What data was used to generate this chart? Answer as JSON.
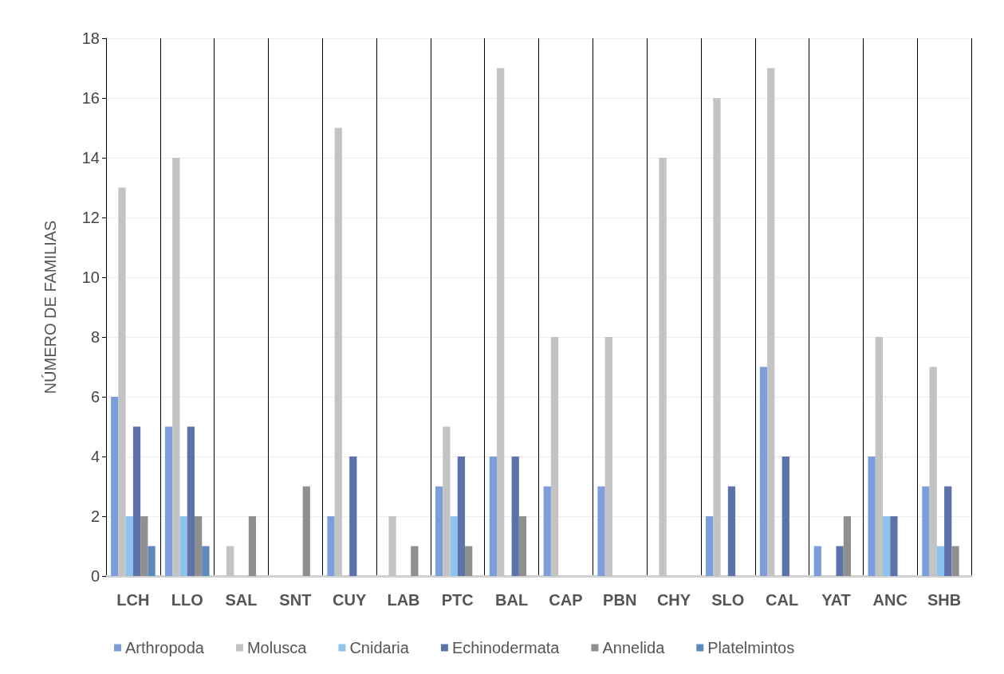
{
  "chart_data": {
    "type": "bar",
    "ylabel": "NÚMERO DE FAMILIAS",
    "categories": [
      "LCH",
      "LLO",
      "SAL",
      "SNT",
      "CUY",
      "LAB",
      "PTC",
      "BAL",
      "CAP",
      "PBN",
      "CHY",
      "SLO",
      "CAL",
      "YAT",
      "ANC",
      "SHB"
    ],
    "series": [
      {
        "name": "Arthropoda",
        "color": "#7c9fdc",
        "values": [
          6,
          5,
          0,
          0,
          2,
          0,
          3,
          4,
          3,
          3,
          0,
          2,
          7,
          1,
          4,
          3
        ]
      },
      {
        "name": "Molusca",
        "color": "#c3c3c3",
        "values": [
          13,
          14,
          1,
          0,
          15,
          2,
          5,
          17,
          8,
          8,
          14,
          16,
          17,
          0,
          8,
          7
        ]
      },
      {
        "name": "Cnidaria",
        "color": "#8ec3ee",
        "values": [
          2,
          2,
          0,
          0,
          0,
          0,
          2,
          0,
          0,
          0,
          0,
          0,
          0,
          0,
          2,
          1
        ]
      },
      {
        "name": "Echinodermata",
        "color": "#5b73a8",
        "values": [
          5,
          5,
          0,
          0,
          4,
          0,
          4,
          4,
          0,
          0,
          0,
          3,
          4,
          1,
          2,
          3
        ]
      },
      {
        "name": "Annelida",
        "color": "#8f8f8f",
        "values": [
          2,
          2,
          2,
          3,
          0,
          1,
          1,
          2,
          0,
          0,
          0,
          0,
          0,
          2,
          0,
          1
        ]
      },
      {
        "name": "Platelmintos",
        "color": "#5b8bbd",
        "values": [
          1,
          1,
          0,
          0,
          0,
          0,
          0,
          0,
          0,
          0,
          0,
          0,
          0,
          0,
          0,
          0
        ]
      }
    ],
    "ylim": [
      0,
      18
    ],
    "yticks": [
      0,
      2,
      4,
      6,
      8,
      10,
      12,
      14,
      16,
      18
    ],
    "grid": true,
    "legend": "bottom"
  }
}
